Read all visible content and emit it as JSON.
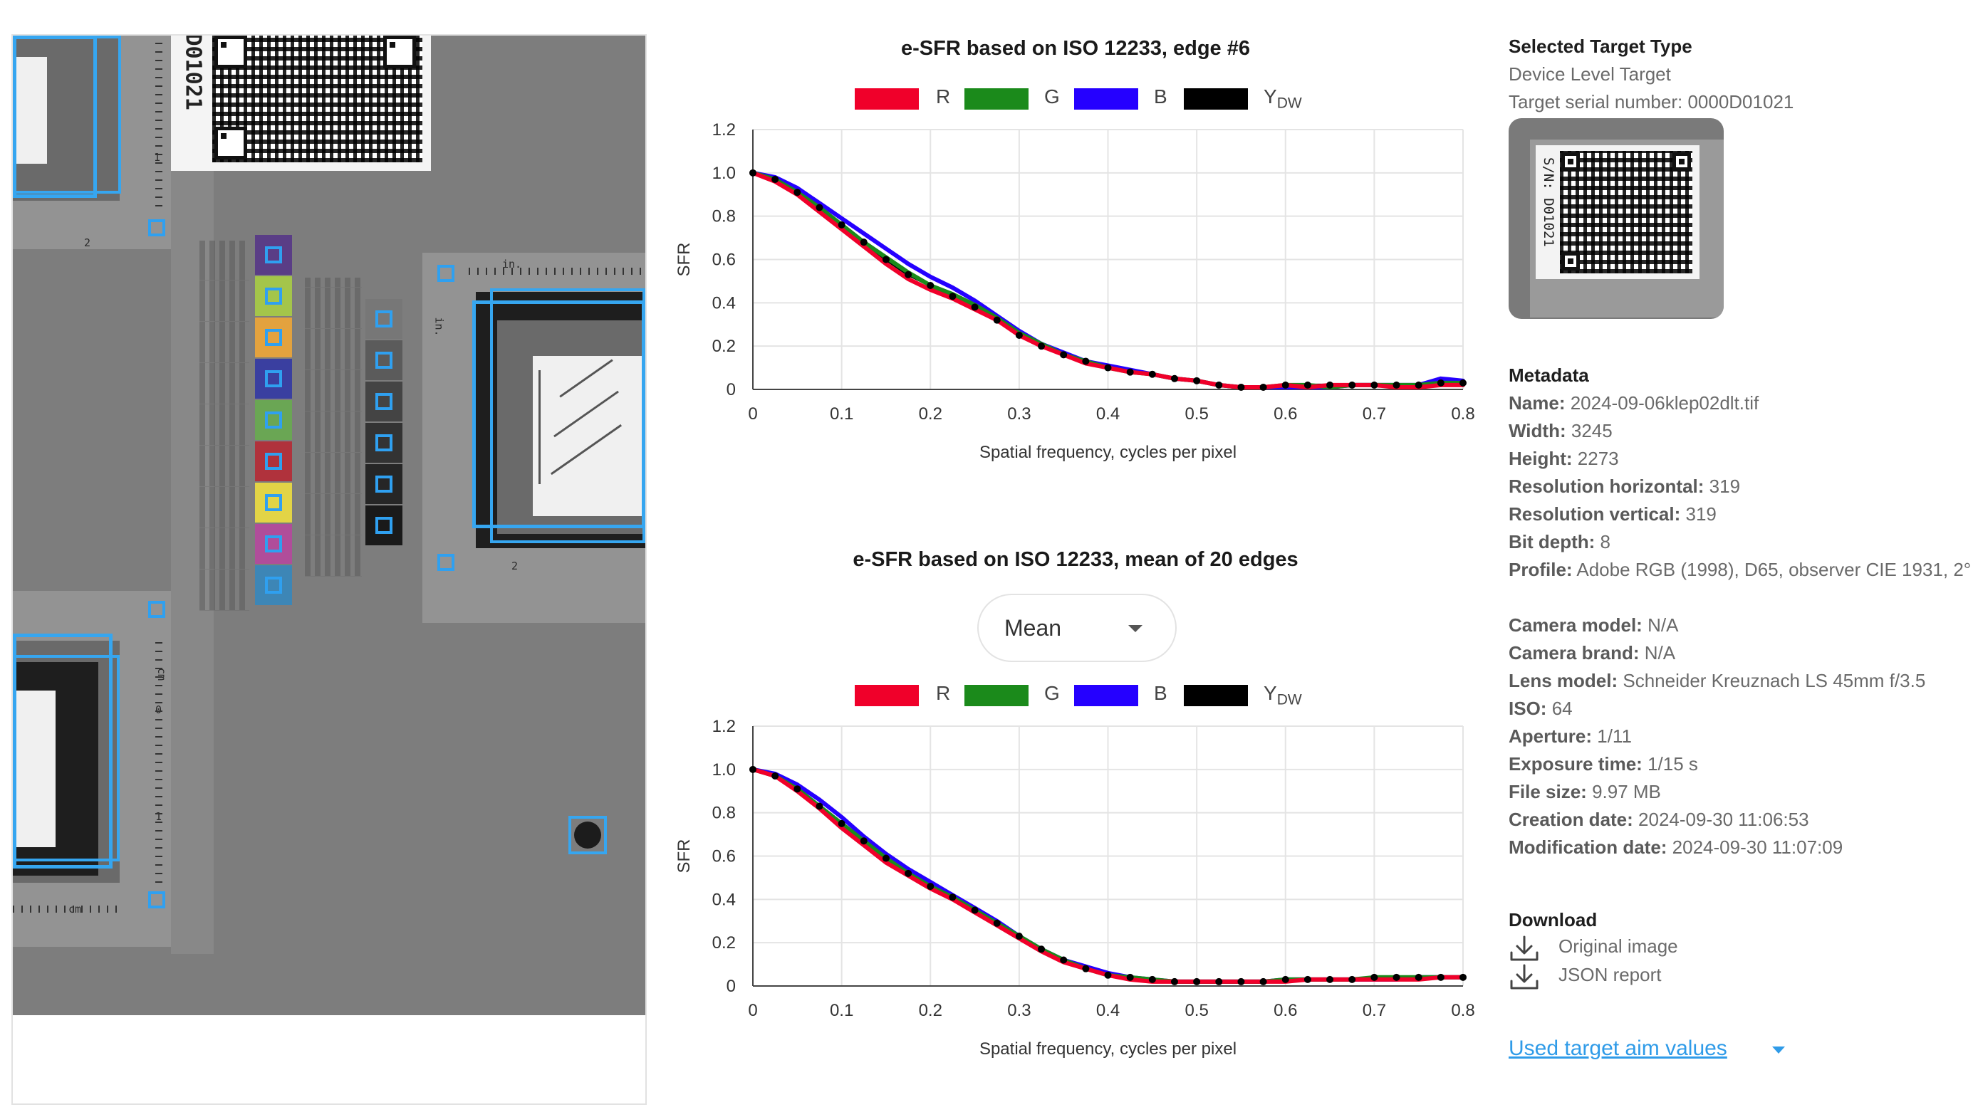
{
  "image_panel": {
    "target_text": "D01021",
    "scale_unit_in": "in.",
    "scale_unit_cm": "cm",
    "scale_digits": [
      "1",
      "2",
      "0",
      "1",
      "2"
    ]
  },
  "chart_top": {
    "title": "e-SFR based on ISO 12233, edge #6",
    "legend": [
      {
        "label": "R",
        "color": "#f0002a"
      },
      {
        "label": "G",
        "color": "#1b8a1b"
      },
      {
        "label": "B",
        "color": "#2500ff"
      },
      {
        "label": "Y",
        "sub": "DW",
        "color": "#000000"
      }
    ],
    "xlabel": "Spatial frequency, cycles per pixel",
    "ylabel": "SFR",
    "xticks": [
      "0",
      "0.1",
      "0.2",
      "0.3",
      "0.4",
      "0.5",
      "0.6",
      "0.7",
      "0.8"
    ],
    "yticks": [
      "0",
      "0.2",
      "0.4",
      "0.6",
      "0.8",
      "1.0",
      "1.2"
    ]
  },
  "chart_bottom": {
    "title": "e-SFR based on ISO 12233, mean of 20 edges",
    "dropdown_value": "Mean",
    "legend": [
      {
        "label": "R",
        "color": "#f0002a"
      },
      {
        "label": "G",
        "color": "#1b8a1b"
      },
      {
        "label": "B",
        "color": "#2500ff"
      },
      {
        "label": "Y",
        "sub": "DW",
        "color": "#000000"
      }
    ],
    "xlabel": "Spatial frequency, cycles per pixel",
    "ylabel": "SFR",
    "xticks": [
      "0",
      "0.1",
      "0.2",
      "0.3",
      "0.4",
      "0.5",
      "0.6",
      "0.7",
      "0.8"
    ],
    "yticks": [
      "0",
      "0.2",
      "0.4",
      "0.6",
      "0.8",
      "1.0",
      "1.2"
    ]
  },
  "chart_data": [
    {
      "type": "line",
      "title": "e-SFR based on ISO 12233, edge #6",
      "xlabel": "Spatial frequency, cycles per pixel",
      "ylabel": "SFR",
      "xlim": [
        0,
        0.8
      ],
      "ylim": [
        0,
        1.2
      ],
      "grid": true,
      "legend": "top",
      "x": [
        0,
        0.025,
        0.05,
        0.075,
        0.1,
        0.125,
        0.15,
        0.175,
        0.2,
        0.225,
        0.25,
        0.275,
        0.3,
        0.325,
        0.35,
        0.375,
        0.4,
        0.425,
        0.45,
        0.475,
        0.5,
        0.525,
        0.55,
        0.575,
        0.6,
        0.625,
        0.65,
        0.675,
        0.7,
        0.725,
        0.75,
        0.775,
        0.8
      ],
      "series": [
        {
          "name": "R",
          "color": "#f0002a",
          "values": [
            1.0,
            0.96,
            0.9,
            0.82,
            0.74,
            0.66,
            0.58,
            0.51,
            0.46,
            0.42,
            0.37,
            0.32,
            0.25,
            0.2,
            0.16,
            0.12,
            0.1,
            0.08,
            0.07,
            0.05,
            0.04,
            0.02,
            0.01,
            0.01,
            0.02,
            0.01,
            0.02,
            0.02,
            0.02,
            0.01,
            0.01,
            0.02,
            0.02
          ]
        },
        {
          "name": "G",
          "color": "#1b8a1b",
          "values": [
            1.0,
            0.97,
            0.91,
            0.84,
            0.76,
            0.68,
            0.61,
            0.54,
            0.48,
            0.44,
            0.39,
            0.33,
            0.26,
            0.21,
            0.16,
            0.13,
            0.1,
            0.08,
            0.07,
            0.05,
            0.04,
            0.02,
            0.01,
            0.01,
            0.02,
            0.02,
            0.01,
            0.02,
            0.02,
            0.02,
            0.02,
            0.03,
            0.03
          ]
        },
        {
          "name": "B",
          "color": "#2500ff",
          "values": [
            1.0,
            0.98,
            0.93,
            0.86,
            0.79,
            0.72,
            0.65,
            0.58,
            0.52,
            0.47,
            0.41,
            0.34,
            0.27,
            0.21,
            0.17,
            0.13,
            0.11,
            0.09,
            0.07,
            0.05,
            0.04,
            0.02,
            0.01,
            0.01,
            0.01,
            0.01,
            0.01,
            0.02,
            0.02,
            0.02,
            0.02,
            0.05,
            0.04
          ]
        },
        {
          "name": "Y",
          "color": "#000000",
          "markers": true,
          "values": [
            1.0,
            0.97,
            0.91,
            0.84,
            0.76,
            0.68,
            0.6,
            0.53,
            0.48,
            0.43,
            0.38,
            0.32,
            0.25,
            0.2,
            0.16,
            0.13,
            0.1,
            0.08,
            0.07,
            0.05,
            0.04,
            0.02,
            0.01,
            0.01,
            0.02,
            0.02,
            0.02,
            0.02,
            0.02,
            0.02,
            0.02,
            0.03,
            0.03
          ]
        }
      ]
    },
    {
      "type": "line",
      "title": "e-SFR based on ISO 12233, mean of 20 edges",
      "xlabel": "Spatial frequency, cycles per pixel",
      "ylabel": "SFR",
      "xlim": [
        0,
        0.8
      ],
      "ylim": [
        0,
        1.2
      ],
      "grid": true,
      "legend": "top",
      "x": [
        0,
        0.025,
        0.05,
        0.075,
        0.1,
        0.125,
        0.15,
        0.175,
        0.2,
        0.225,
        0.25,
        0.275,
        0.3,
        0.325,
        0.35,
        0.375,
        0.4,
        0.425,
        0.45,
        0.475,
        0.5,
        0.525,
        0.55,
        0.575,
        0.6,
        0.625,
        0.65,
        0.675,
        0.7,
        0.725,
        0.75,
        0.775,
        0.8
      ],
      "series": [
        {
          "name": "R",
          "color": "#f0002a",
          "values": [
            1.0,
            0.97,
            0.9,
            0.82,
            0.73,
            0.65,
            0.57,
            0.51,
            0.45,
            0.4,
            0.34,
            0.28,
            0.22,
            0.16,
            0.11,
            0.08,
            0.05,
            0.03,
            0.02,
            0.02,
            0.02,
            0.02,
            0.02,
            0.02,
            0.02,
            0.03,
            0.03,
            0.03,
            0.03,
            0.03,
            0.03,
            0.04,
            0.04
          ]
        },
        {
          "name": "G",
          "color": "#1b8a1b",
          "values": [
            1.0,
            0.97,
            0.91,
            0.83,
            0.75,
            0.67,
            0.59,
            0.52,
            0.46,
            0.41,
            0.35,
            0.29,
            0.23,
            0.17,
            0.12,
            0.08,
            0.05,
            0.04,
            0.03,
            0.02,
            0.02,
            0.02,
            0.02,
            0.02,
            0.03,
            0.03,
            0.03,
            0.03,
            0.04,
            0.04,
            0.04,
            0.04,
            0.04
          ]
        },
        {
          "name": "B",
          "color": "#2500ff",
          "values": [
            1.0,
            0.98,
            0.93,
            0.86,
            0.78,
            0.69,
            0.61,
            0.54,
            0.48,
            0.42,
            0.36,
            0.3,
            0.23,
            0.17,
            0.12,
            0.09,
            0.06,
            0.04,
            0.03,
            0.02,
            0.02,
            0.02,
            0.02,
            0.02,
            0.03,
            0.03,
            0.03,
            0.03,
            0.03,
            0.03,
            0.04,
            0.04,
            0.04
          ]
        },
        {
          "name": "Y",
          "color": "#000000",
          "markers": true,
          "values": [
            1.0,
            0.97,
            0.91,
            0.83,
            0.75,
            0.67,
            0.59,
            0.52,
            0.46,
            0.41,
            0.35,
            0.29,
            0.23,
            0.17,
            0.12,
            0.08,
            0.05,
            0.04,
            0.03,
            0.02,
            0.02,
            0.02,
            0.02,
            0.02,
            0.03,
            0.03,
            0.03,
            0.03,
            0.04,
            0.04,
            0.04,
            0.04,
            0.04
          ]
        }
      ]
    }
  ],
  "info": {
    "target_type_heading": "Selected Target Type",
    "target_type_value": "Device Level Target",
    "serial_line": "Target serial number: 0000D01021",
    "thumb_text": "S/N: D01021",
    "metadata_heading": "Metadata",
    "metadata": [
      {
        "key": "Name:",
        "value": "2024-09-06klep02dlt.tif"
      },
      {
        "key": "Width:",
        "value": "3245"
      },
      {
        "key": "Height:",
        "value": "2273"
      },
      {
        "key": "Resolution horizontal:",
        "value": "319"
      },
      {
        "key": "Resolution vertical:",
        "value": "319"
      },
      {
        "key": "Bit depth:",
        "value": "8"
      },
      {
        "key": "Profile:",
        "value": "Adobe RGB (1998), D65, observer CIE 1931, 2°"
      },
      {
        "key": "Camera model:",
        "value": "N/A"
      },
      {
        "key": "Camera brand:",
        "value": "N/A"
      },
      {
        "key": "Lens model:",
        "value": "Schneider Kreuznach LS 45mm f/3.5"
      },
      {
        "key": "ISO:",
        "value": "64"
      },
      {
        "key": "Aperture:",
        "value": "1/11"
      },
      {
        "key": "Exposure time:",
        "value": "1/15 s"
      },
      {
        "key": "File size:",
        "value": "9.97 MB"
      },
      {
        "key": "Creation date:",
        "value": "2024-09-30 11:06:53"
      },
      {
        "key": "Modification date:",
        "value": "2024-09-30 11:07:09"
      }
    ],
    "download_heading": "Download",
    "downloads": [
      "Original image",
      "JSON report"
    ],
    "aim_link": "Used target aim values",
    "download_icon": "download-icon",
    "caret_icon": "caret-down-icon"
  },
  "colors": {
    "accent": "#2f9be8",
    "selection": "#36a6f0"
  }
}
